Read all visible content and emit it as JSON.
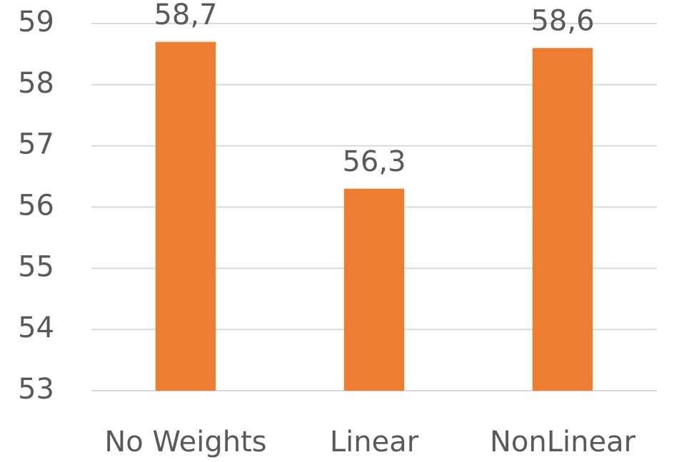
{
  "chart_data": {
    "type": "bar",
    "categories": [
      "No Weights",
      "Linear",
      "NonLinear"
    ],
    "values": [
      58.7,
      56.3,
      58.6
    ],
    "value_labels": [
      "58,7",
      "56,3",
      "58,6"
    ],
    "color": "#ed7d31",
    "ylim": [
      53,
      59
    ],
    "yticks": [
      53,
      54,
      55,
      56,
      57,
      58,
      59
    ],
    "grid": true
  }
}
